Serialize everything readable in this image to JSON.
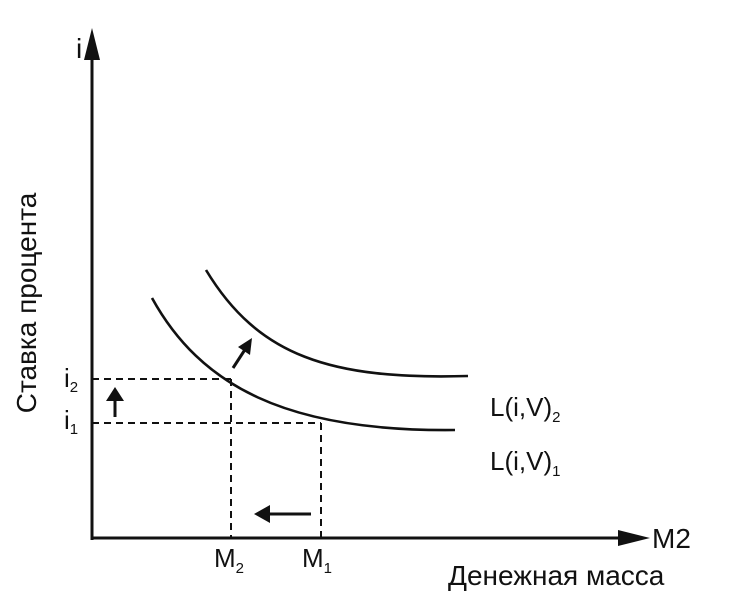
{
  "diagram": {
    "y_axis_label": "Ставка процента",
    "y_axis_symbol": "i",
    "x_axis_symbol": "M2",
    "x_axis_label": "Денежная масса",
    "curve_upper": {
      "base": "L(i,V)",
      "sub": "2"
    },
    "curve_lower": {
      "base": "L(i,V)",
      "sub": "1"
    },
    "y_tick_i2": {
      "base": "i",
      "sub": "2"
    },
    "y_tick_i1": {
      "base": "i",
      "sub": "1"
    },
    "x_tick_m2": {
      "base": "M",
      "sub": "2"
    },
    "x_tick_m1": {
      "base": "M",
      "sub": "1"
    }
  }
}
